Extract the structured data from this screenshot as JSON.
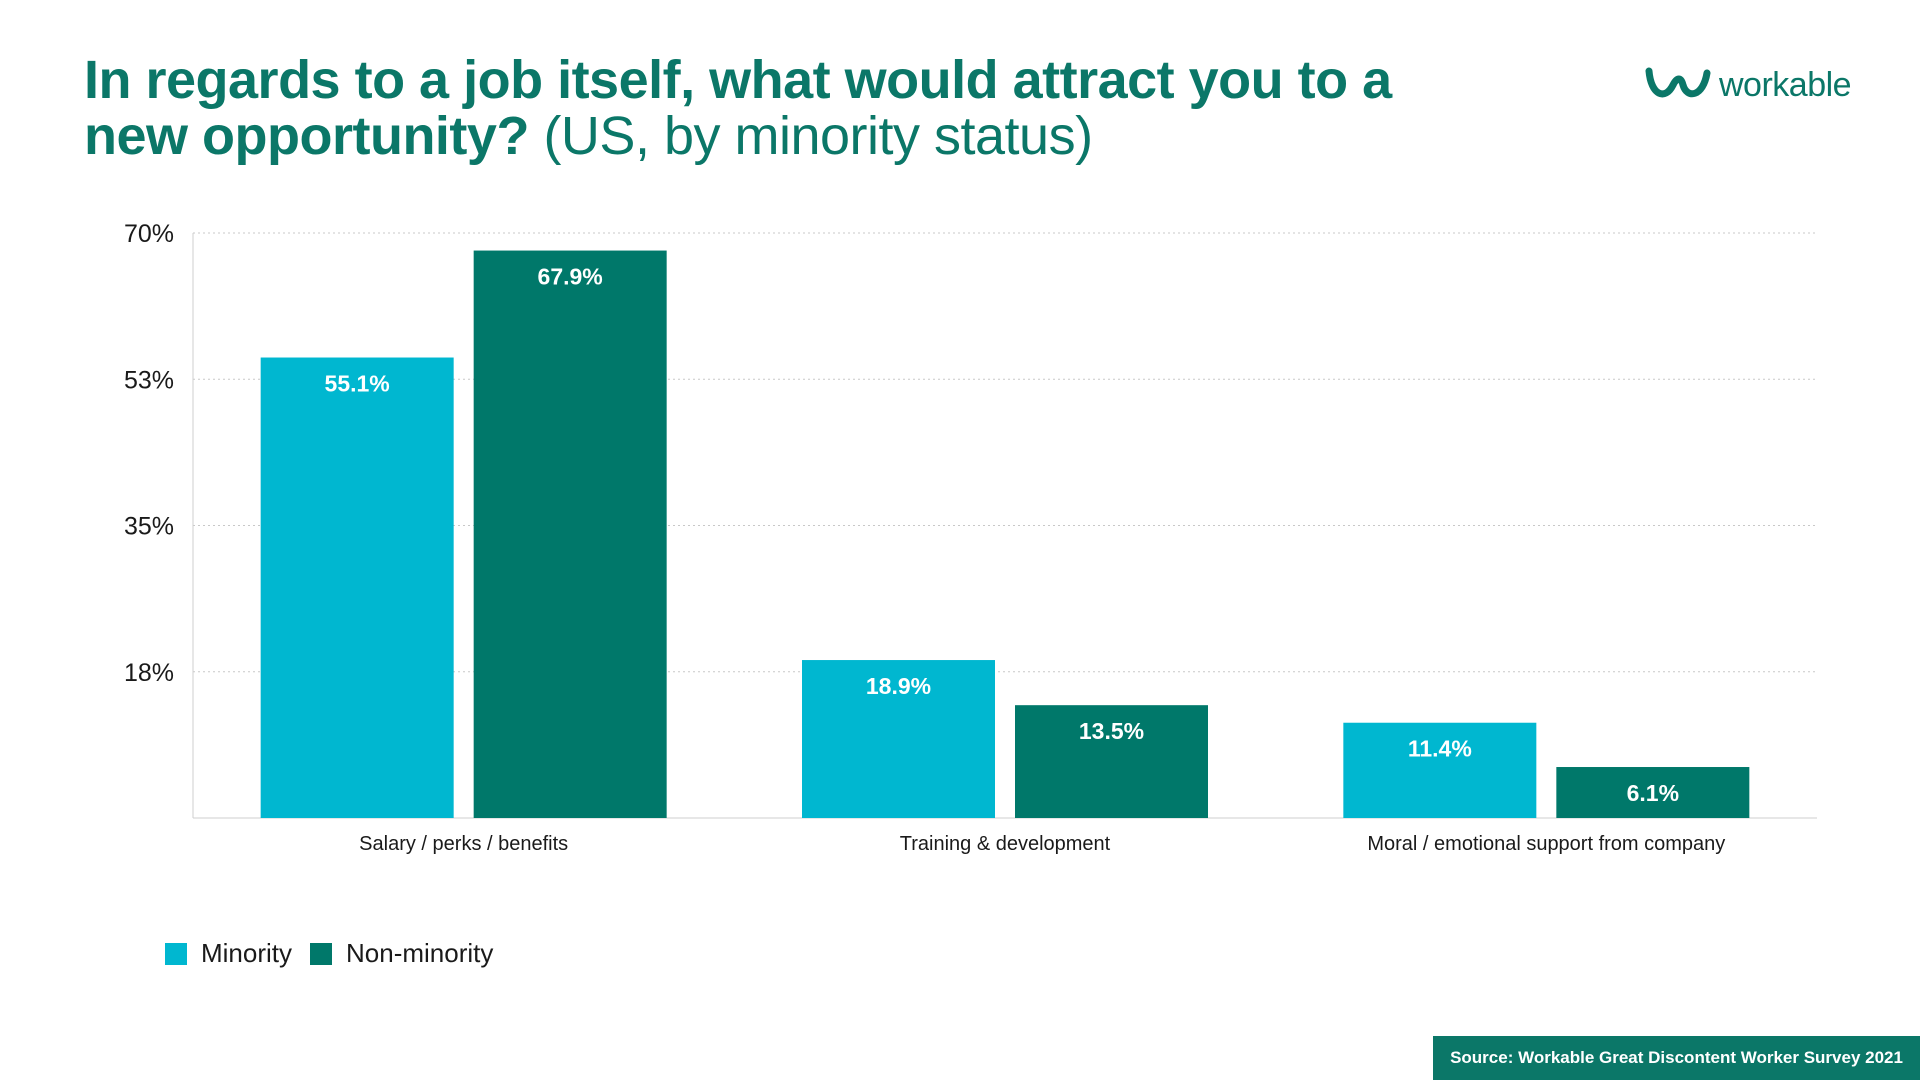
{
  "header": {
    "title_bold": "In regards to a job itself, what would attract you to a new opportunity?",
    "title_light": "(US, by minority status)"
  },
  "logo": {
    "text": "workable",
    "icon": "workable-w-icon"
  },
  "colors": {
    "title": "#0b7768",
    "minority": "#00b7d0",
    "non_minority": "#00786a",
    "source_bg": "#0b7768"
  },
  "chart_data": {
    "type": "bar",
    "categories": [
      "Salary / perks / benefits",
      "Training & development",
      "Moral / emotional support from company"
    ],
    "series": [
      {
        "name": "Minority",
        "values": [
          55.1,
          18.9,
          11.4
        ],
        "labels": [
          "55.1%",
          "18.9%",
          "11.4%"
        ]
      },
      {
        "name": "Non-minority",
        "values": [
          67.9,
          13.5,
          6.1
        ],
        "labels": [
          "67.9%",
          "13.5%",
          "6.1%"
        ]
      }
    ],
    "y_ticks": [
      {
        "value": 17.5,
        "label": "18%"
      },
      {
        "value": 35,
        "label": "35%"
      },
      {
        "value": 52.5,
        "label": "53%"
      },
      {
        "value": 70,
        "label": "70%"
      }
    ],
    "ylim": [
      0,
      70
    ],
    "grid": true,
    "legend_position": "bottom-left"
  },
  "legend": {
    "items": [
      "Minority",
      "Non-minority"
    ]
  },
  "footer": {
    "source": "Source: Workable Great Discontent Worker Survey 2021"
  }
}
